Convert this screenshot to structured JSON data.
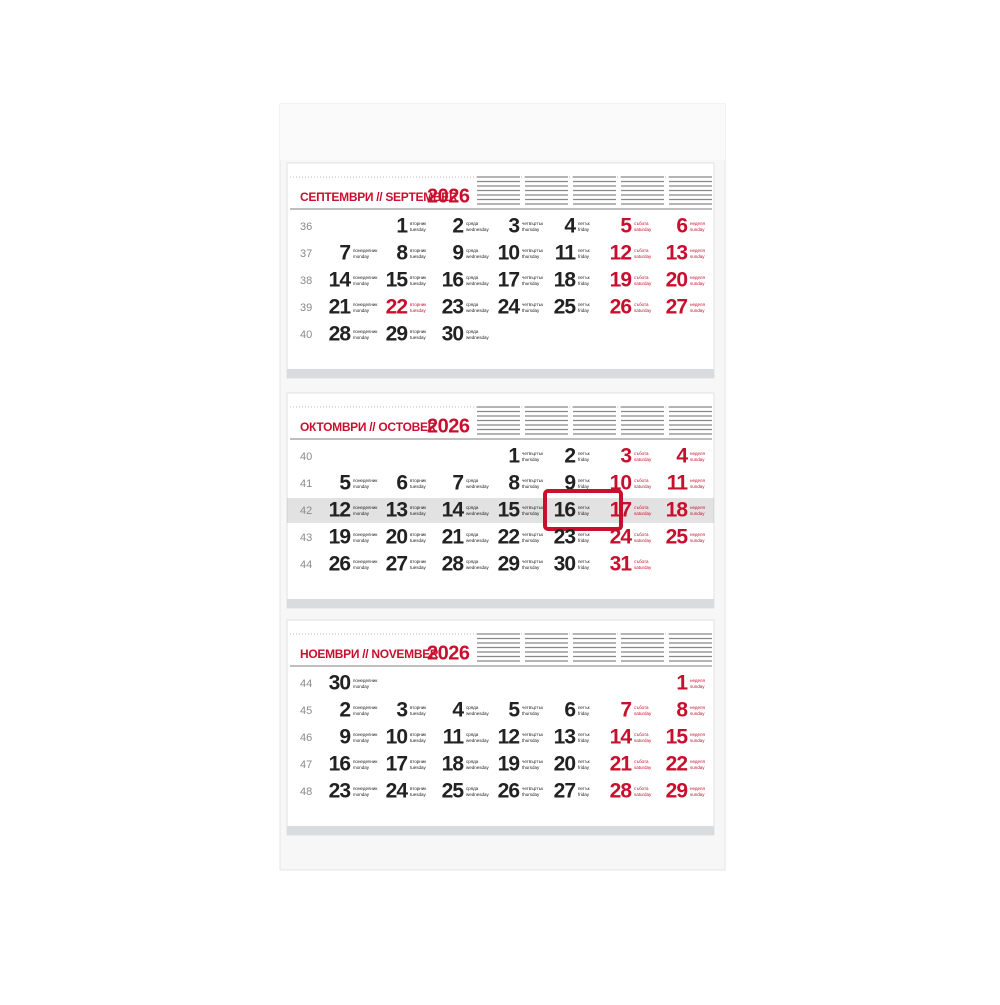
{
  "weekdays": [
    {
      "bg": "понеделник",
      "en": "monday"
    },
    {
      "bg": "вторник",
      "en": "tuesday"
    },
    {
      "bg": "сряда",
      "en": "wednesday"
    },
    {
      "bg": "четвъртък",
      "en": "thursday"
    },
    {
      "bg": "петък",
      "en": "friday"
    },
    {
      "bg": "събота",
      "en": "saturday"
    },
    {
      "bg": "неделя",
      "en": "sunday"
    }
  ],
  "months": [
    {
      "title": "СЕПТЕМВРИ // SEPTEMBER",
      "year": "2026",
      "holidays": [
        22
      ],
      "weeks": [
        {
          "number": 36,
          "days": [
            null,
            1,
            2,
            3,
            4,
            5,
            6
          ]
        },
        {
          "number": 37,
          "days": [
            7,
            8,
            9,
            10,
            11,
            12,
            13
          ]
        },
        {
          "number": 38,
          "days": [
            14,
            15,
            16,
            17,
            18,
            19,
            20
          ]
        },
        {
          "number": 39,
          "days": [
            21,
            22,
            23,
            24,
            25,
            26,
            27
          ]
        },
        {
          "number": 40,
          "days": [
            28,
            29,
            30,
            null,
            null,
            null,
            null
          ]
        }
      ]
    },
    {
      "title": "ОКТОМВРИ // OCTOBER",
      "year": "2026",
      "holidays": [],
      "highlight": {
        "week": 42,
        "day": 16
      },
      "weeks": [
        {
          "number": 40,
          "days": [
            null,
            null,
            null,
            1,
            2,
            3,
            4
          ]
        },
        {
          "number": 41,
          "days": [
            5,
            6,
            7,
            8,
            9,
            10,
            11
          ]
        },
        {
          "number": 42,
          "days": [
            12,
            13,
            14,
            15,
            16,
            17,
            18
          ]
        },
        {
          "number": 43,
          "days": [
            19,
            20,
            21,
            22,
            23,
            24,
            25
          ]
        },
        {
          "number": 44,
          "days": [
            26,
            27,
            28,
            29,
            30,
            31,
            null
          ]
        }
      ]
    },
    {
      "title": "НОЕМВРИ // NOVEMBER",
      "year": "2026",
      "holidays": [],
      "weeks": [
        {
          "number": 44,
          "days": [
            30,
            null,
            null,
            null,
            null,
            null,
            1
          ]
        },
        {
          "number": 45,
          "days": [
            2,
            3,
            4,
            5,
            6,
            7,
            8
          ]
        },
        {
          "number": 46,
          "days": [
            9,
            10,
            11,
            12,
            13,
            14,
            15
          ]
        },
        {
          "number": 47,
          "days": [
            16,
            17,
            18,
            19,
            20,
            21,
            22
          ]
        },
        {
          "number": 48,
          "days": [
            23,
            24,
            25,
            26,
            27,
            28,
            29
          ]
        }
      ]
    }
  ]
}
